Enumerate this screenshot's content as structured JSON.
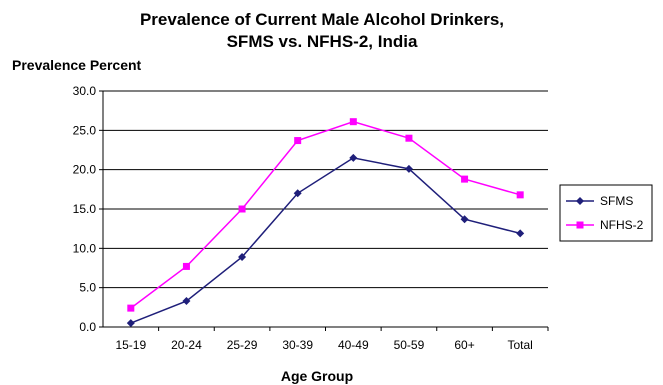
{
  "chart_data": {
    "type": "line",
    "title": [
      "Prevalence of Current Male Alcohol Drinkers,",
      "SFMS vs. NFHS-2, India"
    ],
    "ylabel": "Prevalence Percent",
    "xlabel": "Age Group",
    "categories": [
      "15-19",
      "20-24",
      "25-29",
      "30-39",
      "40-49",
      "50-59",
      "60+",
      "Total"
    ],
    "ylim": [
      0,
      30
    ],
    "yticks": [
      "0.0",
      "5.0",
      "10.0",
      "15.0",
      "20.0",
      "25.0",
      "30.0"
    ],
    "grid": true,
    "legend_position": "right",
    "series": [
      {
        "name": "SFMS",
        "color": "#1f1f7a",
        "marker": "diamond",
        "values": [
          0.5,
          3.3,
          8.9,
          17.0,
          21.5,
          20.1,
          13.7,
          11.9
        ]
      },
      {
        "name": "NFHS-2",
        "color": "#ff00ff",
        "marker": "square",
        "values": [
          2.4,
          7.7,
          15.0,
          23.7,
          26.1,
          24.0,
          18.8,
          16.8
        ]
      }
    ]
  }
}
